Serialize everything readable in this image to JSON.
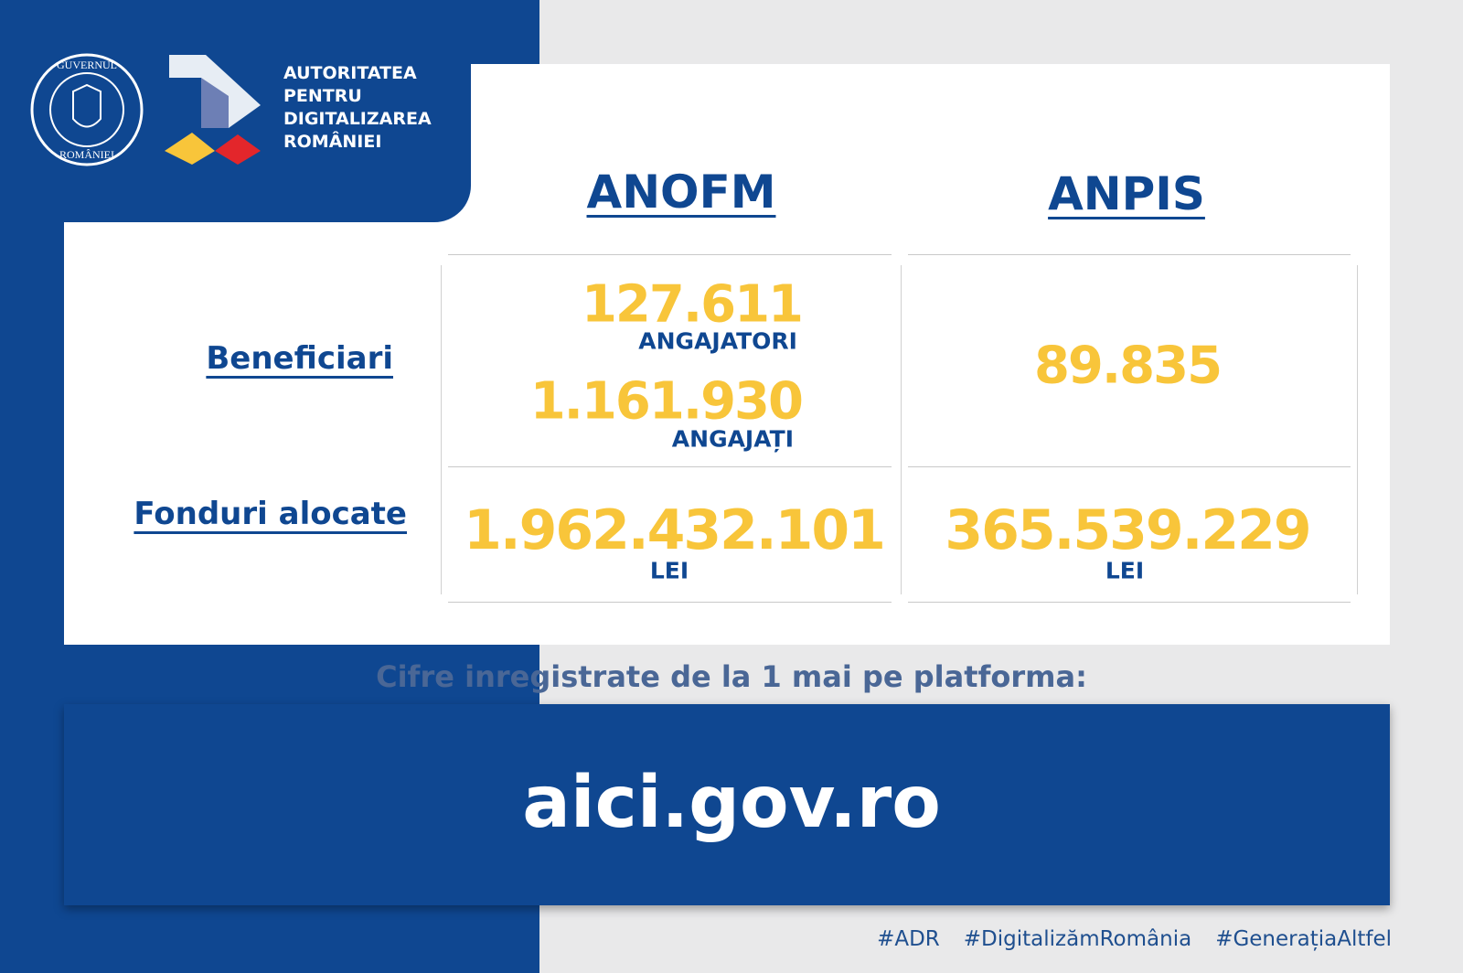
{
  "header": {
    "seal": [
      "GUVERNUL",
      "ROMÂNIEI"
    ],
    "org": [
      "AUTORITATEA",
      "PENTRU",
      "DIGITALIZAREA",
      "ROMÂNIEI"
    ]
  },
  "table": {
    "columns": [
      "ANOFM",
      "ANPIS"
    ],
    "rows": [
      {
        "label": "Beneficiari",
        "anofm": [
          {
            "number": "127.611",
            "unit": "ANGAJATORI"
          },
          {
            "number": "1.161.930",
            "unit": "ANGAJAȚI"
          }
        ],
        "anpis": {
          "number": "89.835"
        }
      },
      {
        "label": "Fonduri alocate",
        "anofm": {
          "number": "1.962.432.101",
          "unit": "LEI"
        },
        "anpis": {
          "number": "365.539.229",
          "unit": "LEI"
        }
      }
    ]
  },
  "footer": {
    "caption": "Cifre inregistrate de la 1 mai pe platforma:",
    "site": "aici.gov.ro",
    "hashtags": [
      "#ADR",
      "#DigitalizămRomânia",
      "#GenerațiaAltfel"
    ]
  }
}
